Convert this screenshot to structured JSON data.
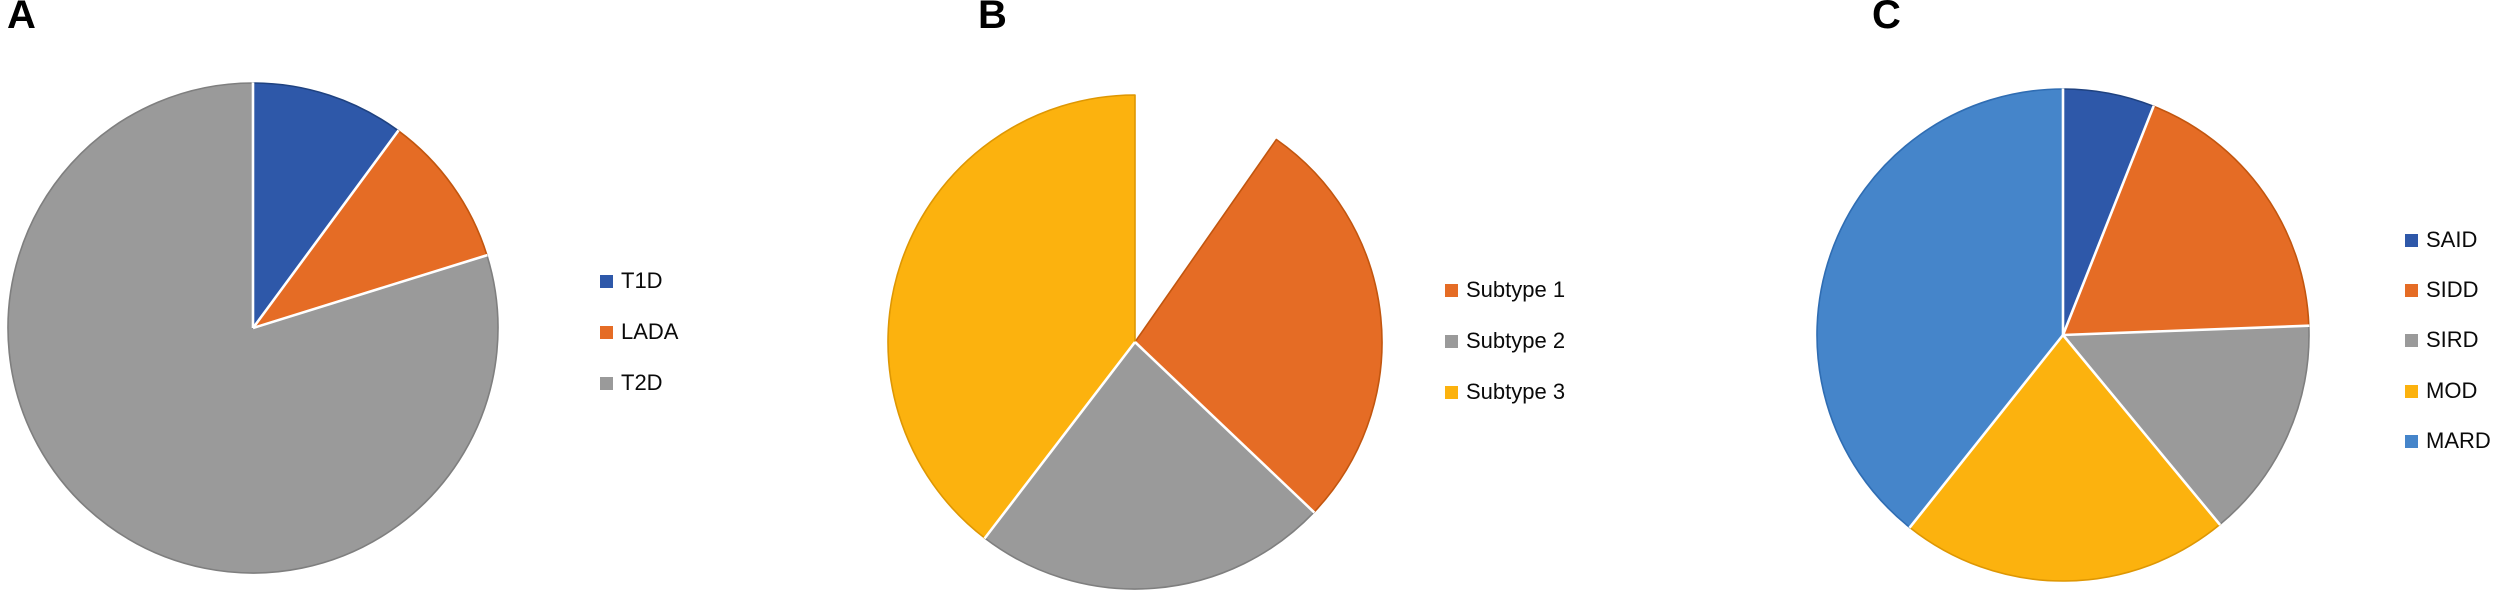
{
  "figure": {
    "background": "#FFFFFF",
    "text_color": "#000000",
    "panels": [
      {
        "panel_label": "A"
      },
      {
        "panel_label": "B"
      },
      {
        "panel_label": "C"
      }
    ]
  },
  "chart_data": [
    {
      "type": "pie",
      "panel": "A",
      "title": "",
      "categories": [
        "T1D",
        "LADA",
        "T2D"
      ],
      "values": [
        10.1,
        10.1,
        79.8
      ],
      "unit": "percent (measured from slice angles)",
      "slice_angles_deg": [
        36.4,
        36.3,
        287.3
      ],
      "start_angle_deg": 0,
      "direction": "clockwise",
      "colors": [
        "#2E58A9",
        "#E56C25",
        "#9A9A9A"
      ],
      "border_colors": [
        "#1F4280",
        "#C2560F",
        "#7F7F7F"
      ],
      "hidden": [
        false,
        false,
        false
      ],
      "legend_labels": [
        "T1D",
        "LADA",
        "T2D"
      ],
      "legend_position": "right",
      "separator_color": "#FFFFFF"
    },
    {
      "type": "pie",
      "panel": "B",
      "title": "",
      "categories": [
        "(unfilled sector)",
        "Subtype 1",
        "Subtype 2",
        "Subtype 3"
      ],
      "values": [
        9.7,
        27.4,
        23.3,
        39.6
      ],
      "unit": "percent (measured from slice angles)",
      "slice_angles_deg": [
        34.9,
        98.8,
        83.7,
        142.6
      ],
      "start_angle_deg": 0,
      "direction": "clockwise",
      "colors": [
        "#FFFFFF",
        "#E56C25",
        "#9A9A9A",
        "#FCB20E"
      ],
      "border_colors": [
        "#FFFFFF",
        "#C2560F",
        "#7F7F7F",
        "#DE9703"
      ],
      "hidden": [
        true,
        false,
        false,
        false
      ],
      "legend_labels": [
        "Subtype 1",
        "Subtype 2",
        "Subtype 3"
      ],
      "legend_position": "right",
      "separator_color": "#FFFFFF"
    },
    {
      "type": "pie",
      "panel": "C",
      "title": "",
      "categories": [
        "SAID",
        "SIDD",
        "SIRD",
        "MOD",
        "MARD"
      ],
      "values": [
        6.0,
        18.4,
        14.6,
        21.7,
        39.3
      ],
      "unit": "percent (measured from slice angles)",
      "slice_angles_deg": [
        21.5,
        66.3,
        52.5,
        78.1,
        141.6
      ],
      "start_angle_deg": 0,
      "direction": "clockwise",
      "colors": [
        "#2E58A9",
        "#E56C25",
        "#9A9A9A",
        "#FCB20E",
        "#4585CA"
      ],
      "border_colors": [
        "#1F4280",
        "#C2560F",
        "#7F7F7F",
        "#DE9703",
        "#2F6DB3"
      ],
      "hidden": [
        false,
        false,
        false,
        false,
        false
      ],
      "legend_labels": [
        "SAID",
        "SIDD",
        "SIRD",
        "MOD",
        "MARD"
      ],
      "legend_position": "right",
      "separator_color": "#FFFFFF"
    }
  ]
}
